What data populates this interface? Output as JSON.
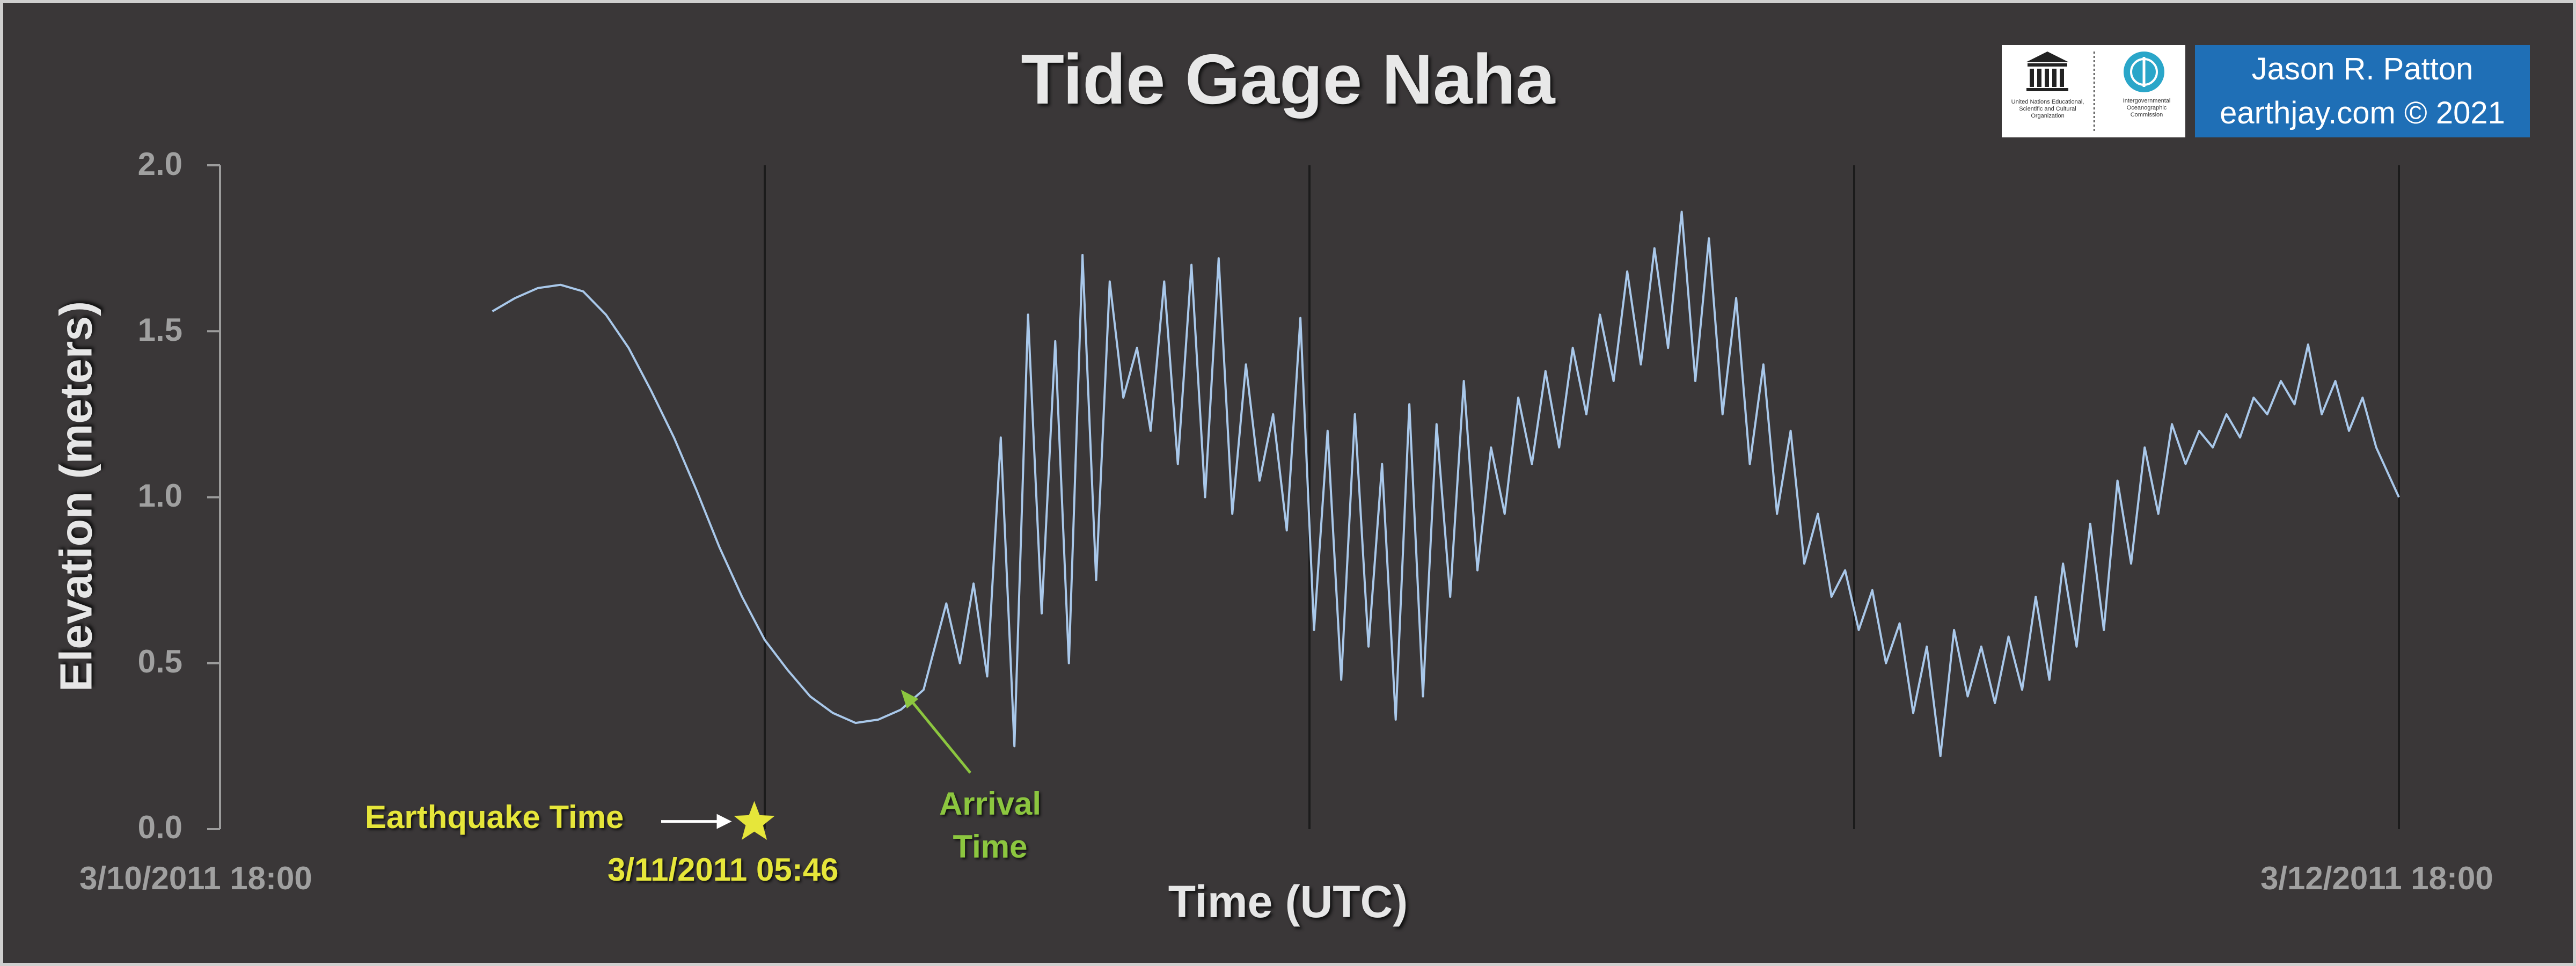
{
  "chart_data": {
    "type": "line",
    "title": "Tide Gage Naha",
    "xlabel": "Time (UTC)",
    "ylabel": "Elevation (meters)",
    "x_unit": "hours after 3/10/2011 18:00 UTC",
    "xlim": [
      0,
      48
    ],
    "ylim": [
      0,
      2.0
    ],
    "y_ticks": [
      "0.0",
      "0.5",
      "1.0",
      "1.5",
      "2.0"
    ],
    "x_tick_labels": [
      "3/10/2011 18:00",
      "3/12/2011 18:00"
    ],
    "grid": "vertical lines every 12 hours",
    "series": [
      {
        "name": "",
        "color": "#a9c8ea",
        "x": [
          6.0,
          6.5,
          7.0,
          7.5,
          8.0,
          8.5,
          9.0,
          9.5,
          10.0,
          10.5,
          11.0,
          11.5,
          12.0,
          12.5,
          13.0,
          13.5,
          14.0,
          14.5,
          15.0,
          15.5,
          16.0,
          16.3,
          16.6,
          16.9,
          17.2,
          17.5,
          17.8,
          18.1,
          18.4,
          18.7,
          19.0,
          19.3,
          19.6,
          19.9,
          20.2,
          20.5,
          20.8,
          21.1,
          21.4,
          21.7,
          22.0,
          22.3,
          22.6,
          22.9,
          23.2,
          23.5,
          23.8,
          24.1,
          24.4,
          24.7,
          25.0,
          25.3,
          25.6,
          25.9,
          26.2,
          26.5,
          26.8,
          27.1,
          27.4,
          27.7,
          28.0,
          28.3,
          28.6,
          28.9,
          29.2,
          29.5,
          29.8,
          30.1,
          30.4,
          30.7,
          31.0,
          31.3,
          31.6,
          31.9,
          32.2,
          32.5,
          32.8,
          33.1,
          33.4,
          33.7,
          34.0,
          34.3,
          34.6,
          34.9,
          35.2,
          35.5,
          35.8,
          36.1,
          36.4,
          36.7,
          37.0,
          37.3,
          37.6,
          37.9,
          38.2,
          38.5,
          38.8,
          39.1,
          39.4,
          39.7,
          40.0,
          40.3,
          40.6,
          40.9,
          41.2,
          41.5,
          41.8,
          42.1,
          42.4,
          42.7,
          43.0,
          43.3,
          43.6,
          43.9,
          44.2,
          44.5,
          44.8,
          45.1,
          45.4,
          45.7,
          46.0,
          46.3,
          46.6,
          46.9,
          47.2,
          47.5,
          48.0
        ],
        "y": [
          1.56,
          1.6,
          1.63,
          1.64,
          1.62,
          1.55,
          1.45,
          1.32,
          1.18,
          1.02,
          0.85,
          0.7,
          0.57,
          0.48,
          0.4,
          0.35,
          0.32,
          0.33,
          0.36,
          0.42,
          0.68,
          0.5,
          0.74,
          0.46,
          1.18,
          0.25,
          1.55,
          0.65,
          1.47,
          0.5,
          1.73,
          0.75,
          1.65,
          1.3,
          1.45,
          1.2,
          1.65,
          1.1,
          1.7,
          1.0,
          1.72,
          0.95,
          1.4,
          1.05,
          1.25,
          0.9,
          1.54,
          0.6,
          1.2,
          0.45,
          1.25,
          0.55,
          1.1,
          0.33,
          1.28,
          0.4,
          1.22,
          0.7,
          1.35,
          0.78,
          1.15,
          0.95,
          1.3,
          1.1,
          1.38,
          1.15,
          1.45,
          1.25,
          1.55,
          1.35,
          1.68,
          1.4,
          1.75,
          1.45,
          1.86,
          1.35,
          1.78,
          1.25,
          1.6,
          1.1,
          1.4,
          0.95,
          1.2,
          0.8,
          0.95,
          0.7,
          0.78,
          0.6,
          0.72,
          0.5,
          0.62,
          0.35,
          0.55,
          0.22,
          0.6,
          0.4,
          0.55,
          0.38,
          0.58,
          0.42,
          0.7,
          0.45,
          0.8,
          0.55,
          0.92,
          0.6,
          1.05,
          0.8,
          1.15,
          0.95,
          1.22,
          1.1,
          1.2,
          1.15,
          1.25,
          1.18,
          1.3,
          1.25,
          1.35,
          1.28,
          1.46,
          1.25,
          1.35,
          1.2,
          1.3,
          1.15,
          1.0
        ]
      }
    ],
    "annotations": {
      "earthquake_label": "Earthquake Time",
      "earthquake_time": "3/11/2011 05:46",
      "earthquake_x": 11.77,
      "arrival_label_1": "Arrival",
      "arrival_label_2": "Time",
      "arrival_x": 15.0
    }
  },
  "logos": {
    "unesco_caption": "United Nations Educational, Scientific and Cultural Organization",
    "ioc_caption": "Intergovernmental Oceanographic Commission"
  },
  "credit": {
    "line1": "Jason R. Patton",
    "line2": "earthjay.com © 2021"
  },
  "colors": {
    "background": "#3a3738",
    "line": "#a9c8ea",
    "earthquake": "#e6e63a",
    "arrival": "#8cc63f",
    "credit_bg": "#1f6fb6"
  }
}
